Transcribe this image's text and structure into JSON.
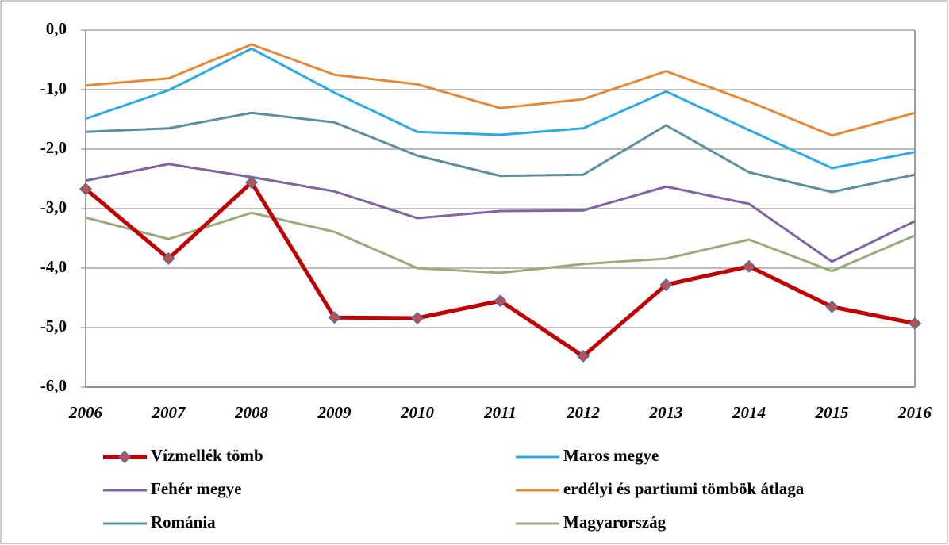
{
  "chart_data": {
    "type": "line",
    "categories": [
      "2006",
      "2007",
      "2008",
      "2009",
      "2010",
      "2011",
      "2012",
      "2013",
      "2014",
      "2015",
      "2016"
    ],
    "series": [
      {
        "name": "Vízmellék tömb",
        "color": "#C00000",
        "marker": "diamond",
        "values": [
          -2.67,
          -3.84,
          -2.56,
          -4.83,
          -4.84,
          -4.55,
          -5.48,
          -4.28,
          -3.97,
          -4.65,
          -4.93
        ]
      },
      {
        "name": "Maros megye",
        "color": "#2EA8E6",
        "values": [
          -1.49,
          -1.01,
          -0.31,
          -1.05,
          -1.71,
          -1.76,
          -1.65,
          -1.03,
          -1.68,
          -2.32,
          -2.05
        ]
      },
      {
        "name": "Fehér megye",
        "color": "#8064A2",
        "values": [
          -2.53,
          -2.25,
          -2.47,
          -2.71,
          -3.16,
          -3.04,
          -3.03,
          -2.63,
          -2.92,
          -3.89,
          -3.21
        ]
      },
      {
        "name": "erdélyi és partiumi tömbök átlaga",
        "color": "#E4893A",
        "values": [
          -0.93,
          -0.81,
          -0.24,
          -0.75,
          -0.91,
          -1.31,
          -1.16,
          -0.69,
          -1.2,
          -1.77,
          -1.39
        ]
      },
      {
        "name": "Románia",
        "color": "#5D8F9E",
        "values": [
          -1.71,
          -1.65,
          -1.39,
          -1.55,
          -2.11,
          -2.45,
          -2.43,
          -1.6,
          -2.39,
          -2.72,
          -2.43
        ]
      },
      {
        "name": "Magyarország",
        "color": "#9BAA7A",
        "values": [
          -3.15,
          -3.51,
          -3.07,
          -3.39,
          -4.0,
          -4.08,
          -3.93,
          -3.84,
          -3.52,
          -4.05,
          -3.45
        ]
      }
    ],
    "ylim": [
      -6,
      0
    ],
    "yticks": [
      {
        "value": 0,
        "label": "0,0"
      },
      {
        "value": -1,
        "label": "-1,0"
      },
      {
        "value": -2,
        "label": "-2,0"
      },
      {
        "value": -3,
        "label": "-3,0"
      },
      {
        "value": -4,
        "label": "-4,0"
      },
      {
        "value": -5,
        "label": "-5,0"
      },
      {
        "value": -6,
        "label": "-6,0"
      }
    ],
    "grid": true,
    "legend": "bottom"
  }
}
